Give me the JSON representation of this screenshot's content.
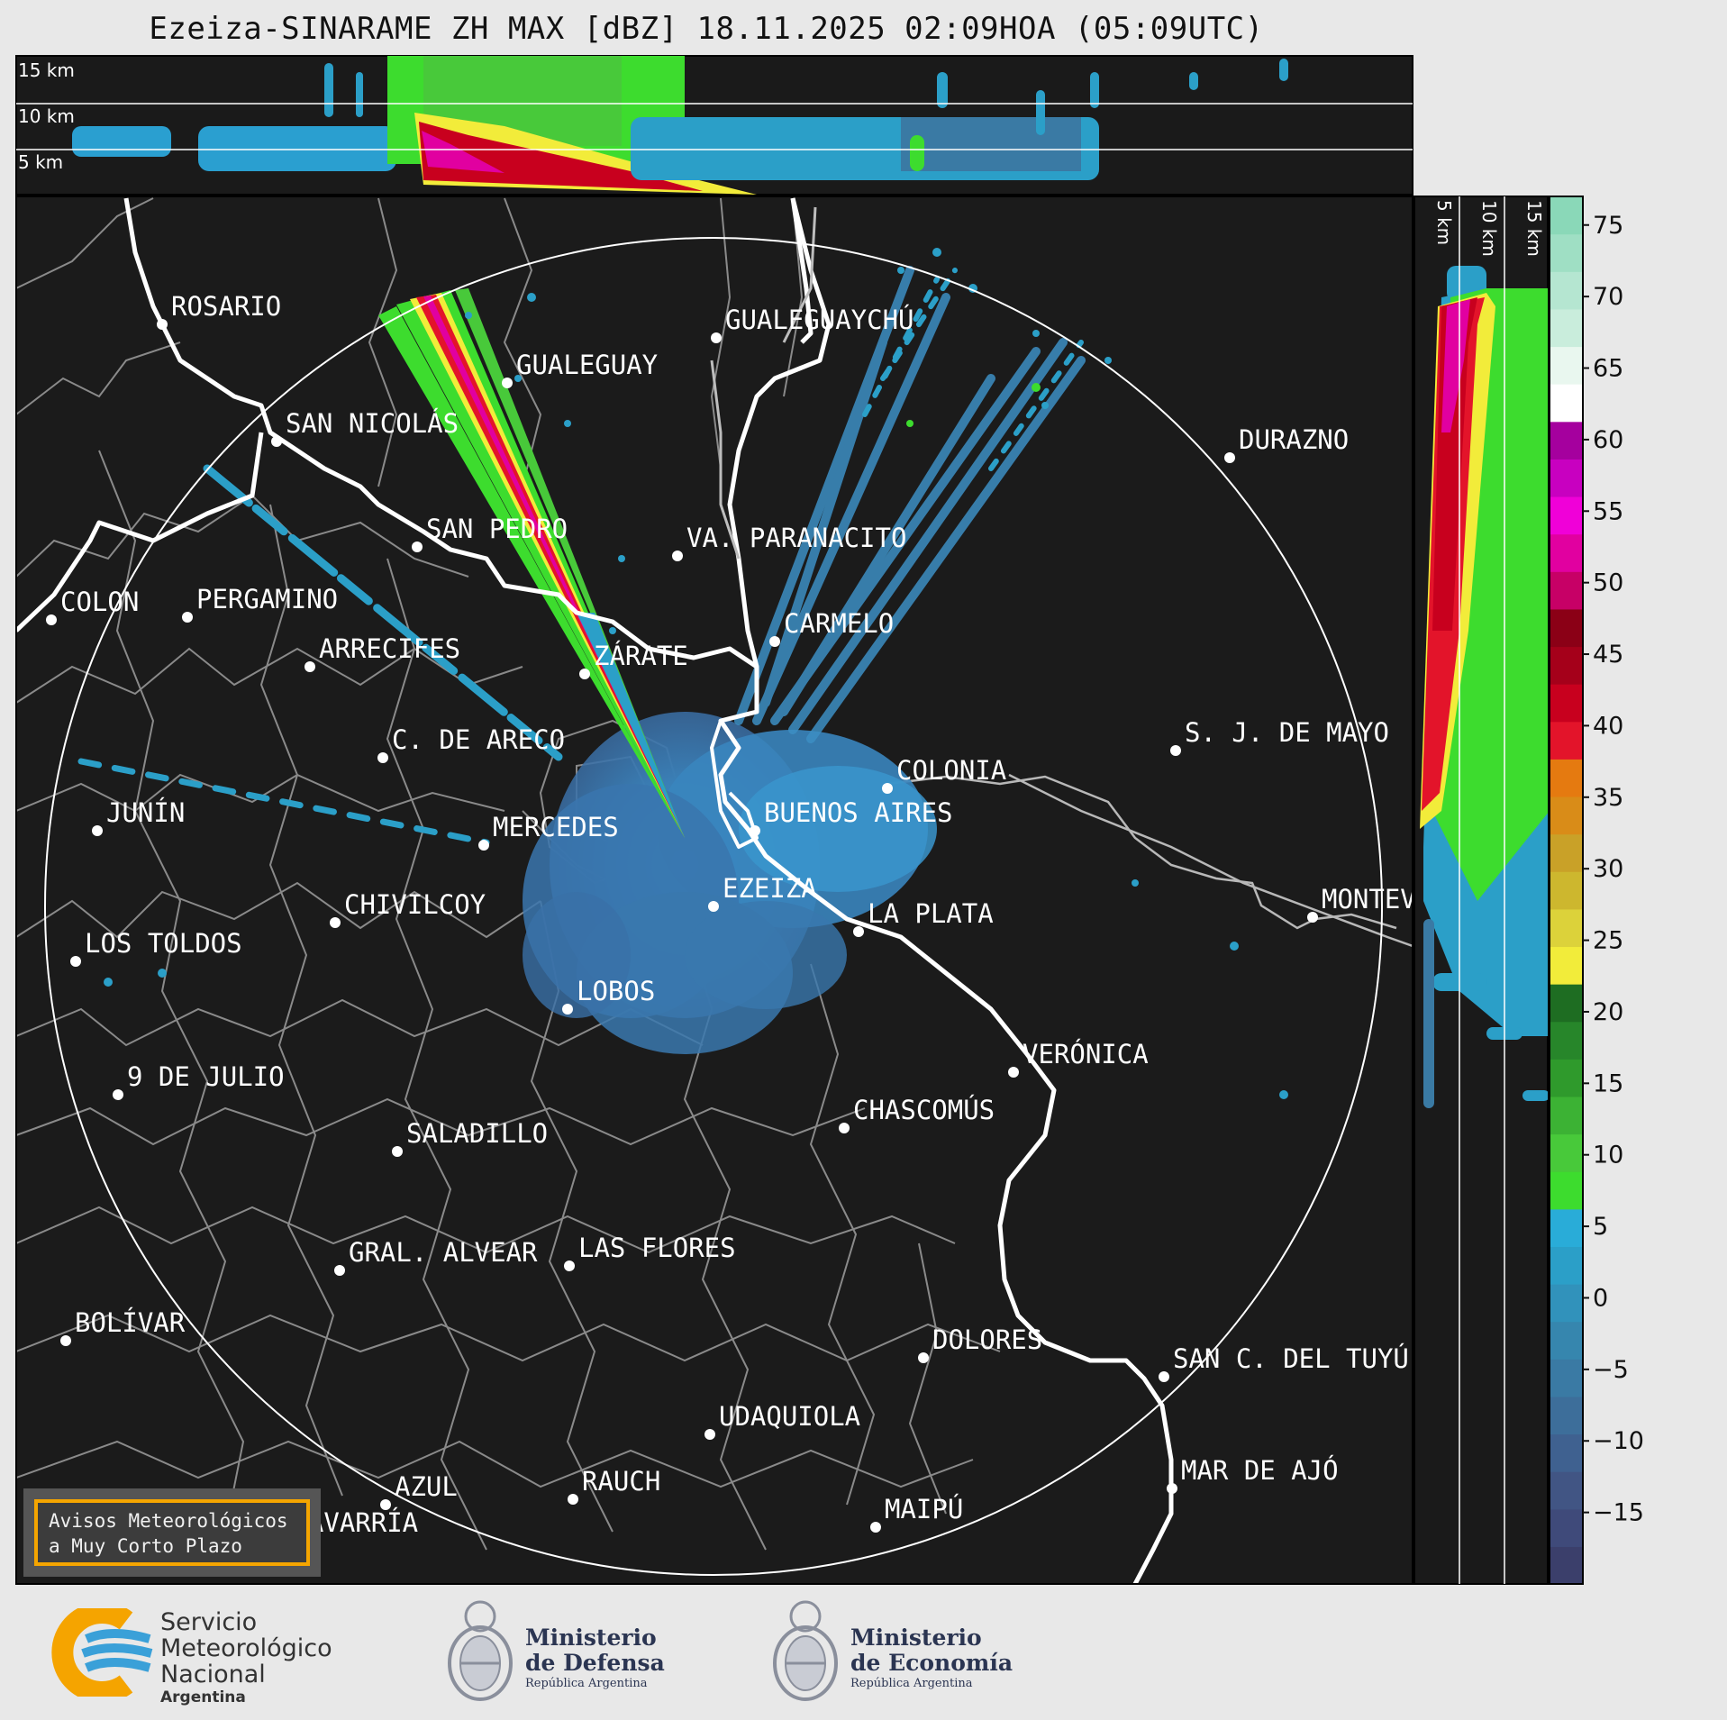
{
  "title": "Ezeiza-SINARAME ZH MAX [dBZ] 18.11.2025 02:09HOA (05:09UTC)",
  "top_panel": {
    "labels": [
      "15 km",
      "10 km",
      "5 km"
    ]
  },
  "side_panel": {
    "labels": [
      "5 km",
      "10 km",
      "15 km"
    ]
  },
  "colorbar": {
    "ticks": [
      "75",
      "70",
      "65",
      "60",
      "55",
      "50",
      "45",
      "40",
      "35",
      "30",
      "25",
      "20",
      "15",
      "10",
      "5",
      "0",
      "−5",
      "−10",
      "−15"
    ],
    "stops": [
      "#3b3f6b",
      "#3f4a7a",
      "#415584",
      "#3f6190",
      "#3d6e9a",
      "#3a7aa4",
      "#3686ae",
      "#3192bb",
      "#2b9fc8",
      "#29acd8",
      "#3ddc2e",
      "#48c93a",
      "#3cb234",
      "#2f9a2c",
      "#27862a",
      "#1e6d22",
      "#f2ec3a",
      "#dcd23a",
      "#cdb72e",
      "#c9a128",
      "#d98c18",
      "#e57a10",
      "#e3142a",
      "#c8001e",
      "#a5001a",
      "#8b0016",
      "#c70066",
      "#e100a0",
      "#f000d8",
      "#c800c0",
      "#a5009e",
      "#ffffff",
      "#e9f7ef",
      "#c9eddc",
      "#b5e6d1",
      "#9fdfc4",
      "#8ad8b8"
    ]
  },
  "cities": [
    {
      "name": "ROSARIO"
    },
    {
      "name": "GUALEGUAYCHÚ"
    },
    {
      "name": "GUALEGUAY"
    },
    {
      "name": "SAN NICOLÁS"
    },
    {
      "name": "DURAZNO"
    },
    {
      "name": "SAN PEDRO"
    },
    {
      "name": "VA. PARANACITO"
    },
    {
      "name": "COLON"
    },
    {
      "name": "PERGAMINO"
    },
    {
      "name": "CARMELO"
    },
    {
      "name": "ARRECIFES"
    },
    {
      "name": "ZÁRATE"
    },
    {
      "name": "S. J. DE MAYO"
    },
    {
      "name": "C. DE ARECO"
    },
    {
      "name": "COLONIA"
    },
    {
      "name": "JUNÍN"
    },
    {
      "name": "BUENOS AIRES"
    },
    {
      "name": "MERCEDES"
    },
    {
      "name": "EZEIZA"
    },
    {
      "name": "MONTEVIDEO"
    },
    {
      "name": "CHIVILCOY"
    },
    {
      "name": "LA PLATA"
    },
    {
      "name": "LOS TOLDOS"
    },
    {
      "name": "LOBOS"
    },
    {
      "name": "VERÓNICA"
    },
    {
      "name": "9 DE JULIO"
    },
    {
      "name": "CHASCOMÚS"
    },
    {
      "name": "SALADILLO"
    },
    {
      "name": "GRAL. ALVEAR"
    },
    {
      "name": "LAS FLORES"
    },
    {
      "name": "BOLÍVAR"
    },
    {
      "name": "DOLORES"
    },
    {
      "name": "SAN C. DEL TUYÚ"
    },
    {
      "name": "UDAQUIOLA"
    },
    {
      "name": "MAR DE AJÓ"
    },
    {
      "name": "AZUL"
    },
    {
      "name": "RAUCH"
    },
    {
      "name": "MAIPÚ"
    },
    {
      "name": "OLAVARRÍA"
    }
  ],
  "aviso": {
    "line1": "Avisos Meteorológicos",
    "line2": "a Muy Corto Plazo"
  },
  "footer": {
    "smn": {
      "line1": "Servicio",
      "line2": "Meteorológico",
      "line3": "Nacional",
      "line4": "Argentina"
    },
    "defensa": {
      "line1": "Ministerio",
      "line2": "de Defensa",
      "line3": "República Argentina"
    },
    "economia": {
      "line1": "Ministerio",
      "line2": "de Economía",
      "line3": "República Argentina"
    }
  }
}
